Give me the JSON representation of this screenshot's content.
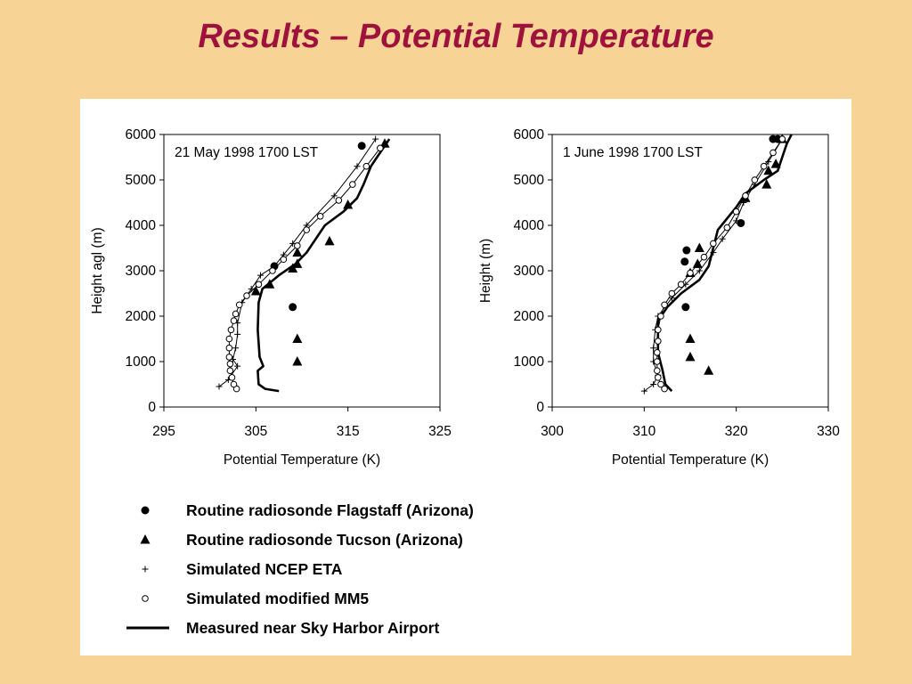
{
  "slide": {
    "title": "Results – Potential Temperature"
  },
  "legend": [
    {
      "marker": "filled-circle",
      "label": "Routine radiosonde Flagstaff (Arizona)"
    },
    {
      "marker": "filled-triangle",
      "label": "Routine radiosonde Tucson (Arizona)"
    },
    {
      "marker": "plus",
      "label": "Simulated NCEP ETA"
    },
    {
      "marker": "open-circle",
      "label": "Simulated modified MM5"
    },
    {
      "marker": "line",
      "label": "Measured near Sky Harbor Airport"
    }
  ],
  "chart_data": [
    {
      "type": "scatter",
      "title": "21 May 1998 1700 LST",
      "xlabel": "Potential Temperature (K)",
      "ylabel": "Height agl (m)",
      "xlim": [
        295,
        325
      ],
      "ylim": [
        0,
        6000
      ],
      "xticks": [
        295,
        305,
        315,
        325
      ],
      "yticks": [
        0,
        1000,
        2000,
        3000,
        4000,
        5000,
        6000
      ],
      "grid": false,
      "series": [
        {
          "marker": "filled-circle",
          "points": [
            [
              309,
              2200
            ],
            [
              307,
              3100
            ],
            [
              316.5,
              5750
            ]
          ]
        },
        {
          "marker": "filled-triangle",
          "points": [
            [
              309.5,
              1000
            ],
            [
              309.5,
              1500
            ],
            [
              305,
              2550
            ],
            [
              306.5,
              2700
            ],
            [
              309,
              3050
            ],
            [
              309.5,
              3150
            ],
            [
              309.5,
              3400
            ],
            [
              313,
              3650
            ],
            [
              315,
              4450
            ],
            [
              319,
              5800
            ]
          ]
        },
        {
          "marker": "plus",
          "points": [
            [
              301,
              450
            ],
            [
              302,
              600
            ],
            [
              303,
              900
            ],
            [
              302.5,
              1050
            ],
            [
              302.8,
              1300
            ],
            [
              303,
              1600
            ],
            [
              303,
              1850
            ],
            [
              303.5,
              2300
            ],
            [
              304.5,
              2600
            ],
            [
              305.5,
              2900
            ],
            [
              307,
              3100
            ],
            [
              308,
              3350
            ],
            [
              309,
              3600
            ],
            [
              310.5,
              4000
            ],
            [
              313.5,
              4650
            ],
            [
              316,
              5300
            ],
            [
              318,
              5900
            ]
          ]
        },
        {
          "marker": "open-circle",
          "points": [
            [
              302.9,
              400
            ],
            [
              302.6,
              500
            ],
            [
              302.4,
              650
            ],
            [
              302.2,
              800
            ],
            [
              302.2,
              950
            ],
            [
              302.1,
              1100
            ],
            [
              302.1,
              1300
            ],
            [
              302.1,
              1500
            ],
            [
              302.3,
              1700
            ],
            [
              302.6,
              1900
            ],
            [
              302.8,
              2050
            ],
            [
              303.2,
              2250
            ],
            [
              304,
              2450
            ],
            [
              305.3,
              2700
            ],
            [
              306.8,
              3000
            ],
            [
              308,
              3250
            ],
            [
              309.5,
              3550
            ],
            [
              310.5,
              3900
            ],
            [
              312,
              4200
            ],
            [
              314,
              4550
            ],
            [
              315.5,
              4900
            ],
            [
              317,
              5300
            ],
            [
              318.5,
              5700
            ]
          ]
        },
        {
          "marker": "line",
          "points": [
            [
              307.5,
              350
            ],
            [
              306,
              400
            ],
            [
              305.3,
              500
            ],
            [
              305.2,
              800
            ],
            [
              305.8,
              900
            ],
            [
              305.4,
              1100
            ],
            [
              305.2,
              1700
            ],
            [
              305.3,
              2300
            ],
            [
              305.7,
              2600
            ],
            [
              307.5,
              2900
            ],
            [
              309.3,
              3150
            ],
            [
              310.5,
              3400
            ],
            [
              311.5,
              3700
            ],
            [
              312.5,
              4000
            ],
            [
              314.5,
              4300
            ],
            [
              316,
              4600
            ],
            [
              316.7,
              4900
            ],
            [
              317.5,
              5300
            ],
            [
              318.5,
              5600
            ],
            [
              319.5,
              5900
            ]
          ]
        }
      ]
    },
    {
      "type": "scatter",
      "title": "1 June 1998 1700 LST",
      "xlabel": "Potential Temperature (K)",
      "ylabel": "Height (m)",
      "xlim": [
        300,
        330
      ],
      "ylim": [
        0,
        6000
      ],
      "xticks": [
        300,
        310,
        320,
        330
      ],
      "yticks": [
        0,
        1000,
        2000,
        3000,
        4000,
        5000,
        6000
      ],
      "grid": false,
      "series": [
        {
          "marker": "filled-circle",
          "points": [
            [
              314.5,
              2200
            ],
            [
              314.4,
              3200
            ],
            [
              314.6,
              3450
            ],
            [
              320.5,
              4050
            ],
            [
              324,
              5900
            ],
            [
              324.5,
              5900
            ]
          ]
        },
        {
          "marker": "filled-triangle",
          "points": [
            [
              315,
              1100
            ],
            [
              315,
              1500
            ],
            [
              317,
              800
            ],
            [
              315,
              2950
            ],
            [
              315.8,
              3150
            ],
            [
              316,
              3500
            ],
            [
              321,
              4600
            ],
            [
              323.3,
              4900
            ],
            [
              323.5,
              5200
            ],
            [
              324.3,
              5350
            ],
            [
              325,
              5900
            ]
          ]
        },
        {
          "marker": "plus",
          "points": [
            [
              310,
              350
            ],
            [
              311,
              500
            ],
            [
              311.5,
              700
            ],
            [
              311,
              1000
            ],
            [
              311,
              1300
            ],
            [
              311.2,
              1700
            ],
            [
              311.5,
              2000
            ],
            [
              313,
              2400
            ],
            [
              314.5,
              2700
            ],
            [
              316,
              3000
            ],
            [
              317.5,
              3400
            ],
            [
              318.5,
              3700
            ],
            [
              320,
              4100
            ],
            [
              320.8,
              4500
            ],
            [
              322,
              4900
            ],
            [
              323.5,
              5400
            ],
            [
              325,
              5900
            ]
          ]
        },
        {
          "marker": "open-circle",
          "points": [
            [
              312.2,
              400
            ],
            [
              311.8,
              500
            ],
            [
              311.5,
              650
            ],
            [
              311.4,
              800
            ],
            [
              311.4,
              1000
            ],
            [
              311.4,
              1200
            ],
            [
              311.5,
              1450
            ],
            [
              311.5,
              1700
            ],
            [
              311.8,
              2000
            ],
            [
              312.2,
              2250
            ],
            [
              313,
              2500
            ],
            [
              314,
              2700
            ],
            [
              315,
              2950
            ],
            [
              316.5,
              3300
            ],
            [
              317.5,
              3600
            ],
            [
              319,
              3950
            ],
            [
              320,
              4300
            ],
            [
              321,
              4650
            ],
            [
              322,
              5000
            ],
            [
              323,
              5300
            ],
            [
              324,
              5600
            ],
            [
              325,
              5900
            ]
          ]
        },
        {
          "marker": "line",
          "points": [
            [
              313,
              350
            ],
            [
              312.3,
              500
            ],
            [
              312,
              800
            ],
            [
              311.5,
              1200
            ],
            [
              311.5,
              1900
            ],
            [
              312.5,
              2200
            ],
            [
              314,
              2500
            ],
            [
              316,
              2800
            ],
            [
              317,
              3100
            ],
            [
              317.5,
              3500
            ],
            [
              318,
              3900
            ],
            [
              320,
              4400
            ],
            [
              321,
              4700
            ],
            [
              323,
              5000
            ],
            [
              324.5,
              5200
            ],
            [
              325,
              5500
            ],
            [
              325.5,
              5800
            ],
            [
              326,
              6000
            ]
          ]
        }
      ]
    }
  ]
}
